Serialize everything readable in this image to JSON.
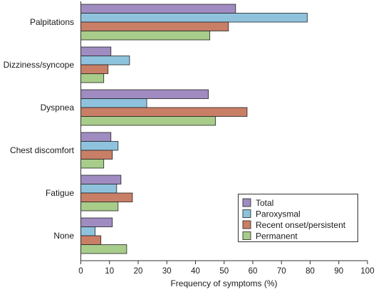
{
  "chart_data": {
    "type": "bar",
    "orientation": "horizontal",
    "categories": [
      "Palpitations",
      "Dizziness/syncope",
      "Dyspnea",
      "Chest discomfort",
      "Fatigue",
      "None"
    ],
    "series": [
      {
        "name": "Total",
        "color": "#a08cc0",
        "values": [
          54,
          10.5,
          44.5,
          10.5,
          14,
          11
        ]
      },
      {
        "name": "Paroxysmal",
        "color": "#8fc3dd",
        "values": [
          79,
          17,
          23,
          13,
          12.5,
          5
        ]
      },
      {
        "name": "Recent onset/persistent",
        "color": "#c97e66",
        "values": [
          51.5,
          9.5,
          58,
          11,
          18,
          7
        ]
      },
      {
        "name": "Permanent",
        "color": "#a8cc8a",
        "values": [
          45,
          8,
          47,
          8,
          13,
          16
        ]
      }
    ],
    "xlabel": "Frequency of symptoms (%)",
    "ylabel": "",
    "xlim": [
      0,
      100
    ],
    "xticks": [
      0,
      10,
      20,
      30,
      40,
      50,
      60,
      70,
      80,
      90,
      100
    ],
    "grid": false,
    "legend_position": "bottom-right"
  }
}
